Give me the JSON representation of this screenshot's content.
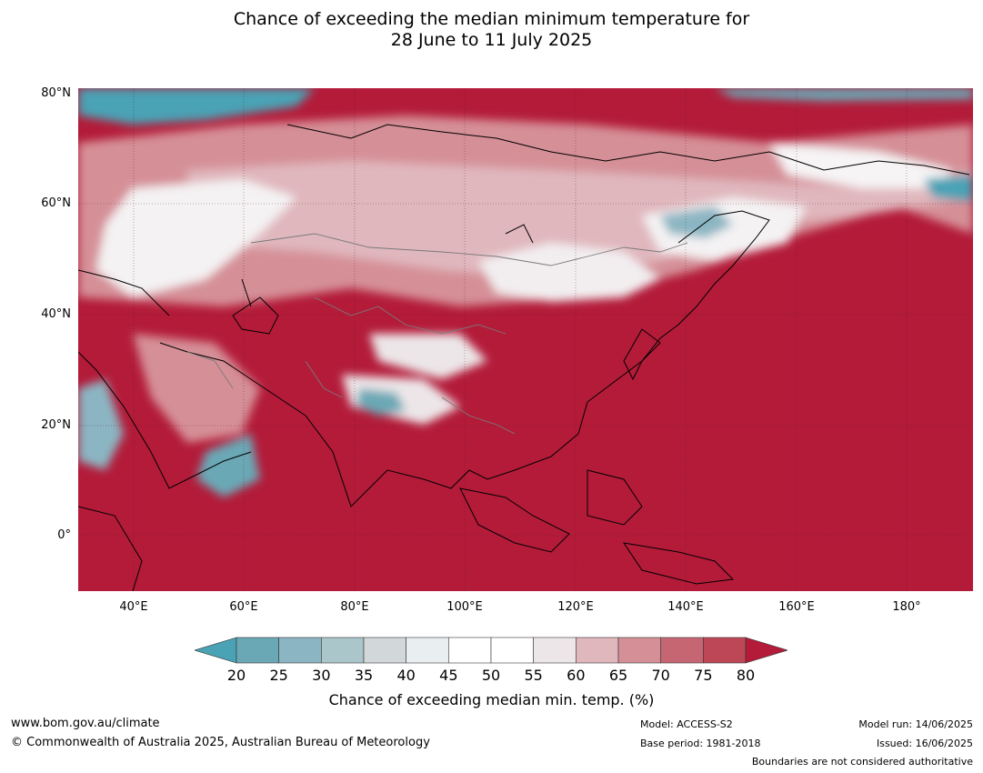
{
  "title_line1": "Chance of exceeding the median minimum temperature for",
  "title_line2": "28 June to 11 July 2025",
  "lat_labels": [
    "80°N",
    "60°N",
    "40°N",
    "20°N",
    "0°"
  ],
  "lon_labels": [
    "40°E",
    "60°E",
    "80°E",
    "100°E",
    "120°E",
    "140°E",
    "160°E",
    "180°"
  ],
  "map_extent": {
    "lon": [
      30,
      192
    ],
    "lat": [
      -10,
      80
    ]
  },
  "colorbar": {
    "ticks": [
      "20",
      "25",
      "30",
      "35",
      "40",
      "45",
      "50",
      "55",
      "60",
      "65",
      "70",
      "75",
      "80"
    ],
    "colors": [
      "#4aa3b5",
      "#6aa8b6",
      "#8bb5c2",
      "#abc6cb",
      "#d2d8da",
      "#e9eef0",
      "#ffffff",
      "#ffffff",
      "#ece6e8",
      "#e0b7bd",
      "#d58f97",
      "#c76673",
      "#bd4756",
      "#b31b39"
    ],
    "label": "Chance of exceeding median min. temp. (%)"
  },
  "footer": {
    "url": "www.bom.gov.au/climate",
    "copyright": "© Commonwealth of Australia 2025, Australian Bureau of Meteorology",
    "model": "Model: ACCESS-S2",
    "base_period": "Base period: 1981-2018",
    "model_run": "Model run: 14/06/2025",
    "issued": "Issued: 16/06/2025",
    "boundaries": "Boundaries are not considered authoritative"
  }
}
